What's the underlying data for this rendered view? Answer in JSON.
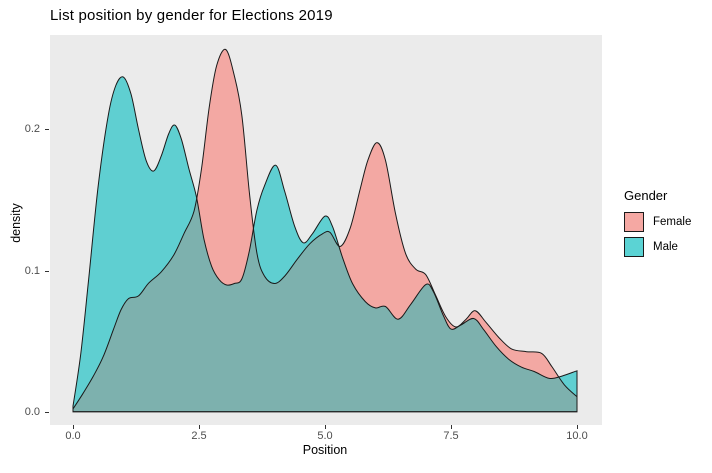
{
  "title": "List position by gender for Elections 2019",
  "axes": {
    "x": {
      "label": "Position",
      "ticks": [
        "0.0",
        "2.5",
        "5.0",
        "7.5",
        "10.0"
      ],
      "tick_values": [
        0,
        2.5,
        5,
        7.5,
        10
      ]
    },
    "y": {
      "label": "density",
      "ticks": [
        "0.0",
        "0.1",
        "0.2"
      ],
      "tick_values": [
        0,
        0.1,
        0.2
      ]
    }
  },
  "legend": {
    "title": "Gender",
    "items": [
      {
        "label": "Female",
        "swatch_color": "#F5A8A3"
      },
      {
        "label": "Male",
        "swatch_color": "#5BD3D4"
      }
    ]
  },
  "colors": {
    "panel_background": "#EBEBEB",
    "female_fill": "#F3A8A3",
    "male_fill": "#5FCFD1",
    "overlap_fill": "#7DB1AE",
    "curve_outline": "#1A1A1A",
    "tick_text": "#4D4D4D"
  },
  "chart_data": {
    "type": "area",
    "subtype": "overlapping-density",
    "title": "List position by gender for Elections 2019",
    "xlabel": "Position",
    "ylabel": "density",
    "xlim": [
      0,
      10
    ],
    "ylim": [
      0,
      0.26
    ],
    "grid": false,
    "legend_position": "right",
    "series": [
      {
        "name": "Female",
        "points": [
          [
            0,
            0.002
          ],
          [
            0.2,
            0.013
          ],
          [
            0.4,
            0.025
          ],
          [
            0.6,
            0.039
          ],
          [
            0.8,
            0.058
          ],
          [
            0.95,
            0.072
          ],
          [
            1.1,
            0.08
          ],
          [
            1.3,
            0.082
          ],
          [
            1.5,
            0.091
          ],
          [
            1.75,
            0.099
          ],
          [
            2,
            0.111
          ],
          [
            2.2,
            0.126
          ],
          [
            2.4,
            0.142
          ],
          [
            2.55,
            0.172
          ],
          [
            2.7,
            0.215
          ],
          [
            2.85,
            0.245
          ],
          [
            3.03,
            0.2565
          ],
          [
            3.2,
            0.238
          ],
          [
            3.35,
            0.21
          ],
          [
            3.5,
            0.155
          ],
          [
            3.65,
            0.112
          ],
          [
            3.8,
            0.096
          ],
          [
            4,
            0.0908
          ],
          [
            4.2,
            0.096
          ],
          [
            4.45,
            0.108
          ],
          [
            4.7,
            0.119
          ],
          [
            4.95,
            0.126
          ],
          [
            5.1,
            0.127
          ],
          [
            5.3,
            0.117
          ],
          [
            5.5,
            0.13
          ],
          [
            5.7,
            0.158
          ],
          [
            5.85,
            0.178
          ],
          [
            6.03,
            0.1906
          ],
          [
            6.2,
            0.178
          ],
          [
            6.4,
            0.14
          ],
          [
            6.6,
            0.112
          ],
          [
            6.8,
            0.101
          ],
          [
            7,
            0.097
          ],
          [
            7.2,
            0.082
          ],
          [
            7.4,
            0.067
          ],
          [
            7.6,
            0.06
          ],
          [
            7.8,
            0.0655
          ],
          [
            7.98,
            0.0715
          ],
          [
            8.2,
            0.063
          ],
          [
            8.45,
            0.0525
          ],
          [
            8.7,
            0.0445
          ],
          [
            9,
            0.0425
          ],
          [
            9.3,
            0.0413
          ],
          [
            9.5,
            0.032
          ],
          [
            9.75,
            0.019
          ],
          [
            10,
            0.0106
          ]
        ]
      },
      {
        "name": "Male",
        "points": [
          [
            0,
            0.004
          ],
          [
            0.15,
            0.04
          ],
          [
            0.3,
            0.09
          ],
          [
            0.5,
            0.16
          ],
          [
            0.7,
            0.21
          ],
          [
            0.85,
            0.231
          ],
          [
            1,
            0.237
          ],
          [
            1.15,
            0.225
          ],
          [
            1.3,
            0.2
          ],
          [
            1.45,
            0.178
          ],
          [
            1.6,
            0.1705
          ],
          [
            1.75,
            0.181
          ],
          [
            1.9,
            0.197
          ],
          [
            2.02,
            0.203
          ],
          [
            2.15,
            0.193
          ],
          [
            2.3,
            0.172
          ],
          [
            2.45,
            0.152
          ],
          [
            2.6,
            0.122
          ],
          [
            2.75,
            0.103
          ],
          [
            2.9,
            0.0935
          ],
          [
            3.05,
            0.0897
          ],
          [
            3.2,
            0.0908
          ],
          [
            3.35,
            0.094
          ],
          [
            3.5,
            0.114
          ],
          [
            3.65,
            0.143
          ],
          [
            3.8,
            0.16
          ],
          [
            4.02,
            0.1746
          ],
          [
            4.2,
            0.156
          ],
          [
            4.4,
            0.131
          ],
          [
            4.57,
            0.1196
          ],
          [
            4.75,
            0.126
          ],
          [
            5,
            0.1385
          ],
          [
            5.15,
            0.131
          ],
          [
            5.35,
            0.109
          ],
          [
            5.55,
            0.0905
          ],
          [
            5.8,
            0.078
          ],
          [
            6,
            0.0735
          ],
          [
            6.2,
            0.0745
          ],
          [
            6.45,
            0.0655
          ],
          [
            6.7,
            0.076
          ],
          [
            7,
            0.09
          ],
          [
            7.15,
            0.085
          ],
          [
            7.35,
            0.068
          ],
          [
            7.5,
            0.0585
          ],
          [
            7.7,
            0.0615
          ],
          [
            7.95,
            0.066
          ],
          [
            8.15,
            0.058
          ],
          [
            8.4,
            0.046
          ],
          [
            8.65,
            0.037
          ],
          [
            8.9,
            0.0315
          ],
          [
            9.15,
            0.0285
          ],
          [
            9.45,
            0.0236
          ],
          [
            9.7,
            0.0252
          ],
          [
            10,
            0.029
          ]
        ]
      }
    ]
  }
}
